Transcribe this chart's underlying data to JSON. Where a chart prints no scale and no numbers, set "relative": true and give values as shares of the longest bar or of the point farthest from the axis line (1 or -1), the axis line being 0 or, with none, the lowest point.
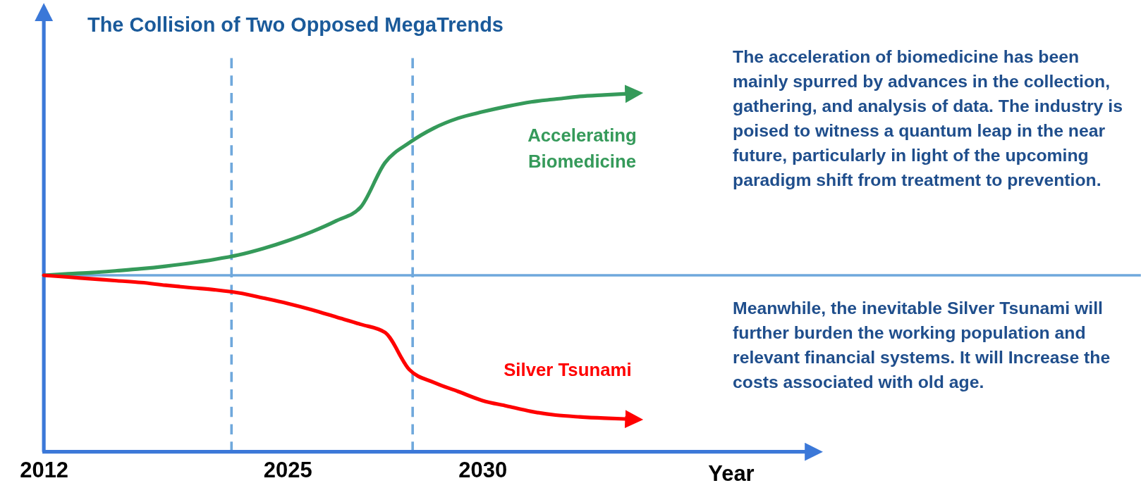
{
  "chart_data": {
    "type": "line",
    "title": "The Collision of Two Opposed MegaTrends",
    "xlabel": "Year",
    "relative": true,
    "categories": [
      "2012",
      null,
      null,
      null,
      null,
      null,
      null,
      null,
      null,
      null,
      "2025",
      null,
      null,
      null,
      null,
      null,
      null,
      null,
      "2030",
      null,
      null,
      null,
      null,
      null,
      null,
      null,
      null,
      null,
      null,
      null,
      null
    ],
    "tick_labels": "x",
    "marker": "none",
    "line_style": "solid",
    "ref_lines": [
      {
        "axis": "y",
        "value": 0,
        "color": "#6fa8dc",
        "line_style": "solid"
      }
    ],
    "series": [
      {
        "name": "Accelerating Biomedicine",
        "color": "#359a5a",
        "values": [
          0,
          0.008,
          0.015,
          0.025,
          0.036,
          0.05,
          0.067,
          0.087,
          0.112,
          0.147,
          0.19,
          0.24,
          0.3,
          0.375,
          0.62,
          0.73,
          0.81,
          0.865,
          0.9,
          0.93,
          0.955,
          0.97,
          0.985,
          0.993,
          1,
          null,
          null,
          null,
          null,
          null,
          null
        ]
      },
      {
        "name": "Silver Tsunami",
        "color": "#ff0000",
        "values": [
          0,
          -0.01,
          -0.02,
          -0.03,
          -0.04,
          -0.055,
          -0.068,
          -0.08,
          -0.097,
          -0.125,
          -0.155,
          -0.19,
          -0.23,
          -0.27,
          -0.315,
          -0.52,
          -0.59,
          -0.64,
          -0.69,
          -0.72,
          -0.75,
          -0.77,
          -0.78,
          -0.787,
          -0.792,
          null,
          null,
          null,
          null,
          null,
          null
        ]
      }
    ],
    "annotations": [
      "The acceleration of biomedicine has been mainly spurred by advances in the collection, gathering, and analysis of data. The industry is poised to witness a quantum leap in the near future, particularly in light of the upcoming paradigm shift from treatment to prevention.",
      "Meanwhile, the inevitable Silver Tsunami will further burden the working population and relevant financial systems. It will Increase the costs associated with old age."
    ]
  }
}
